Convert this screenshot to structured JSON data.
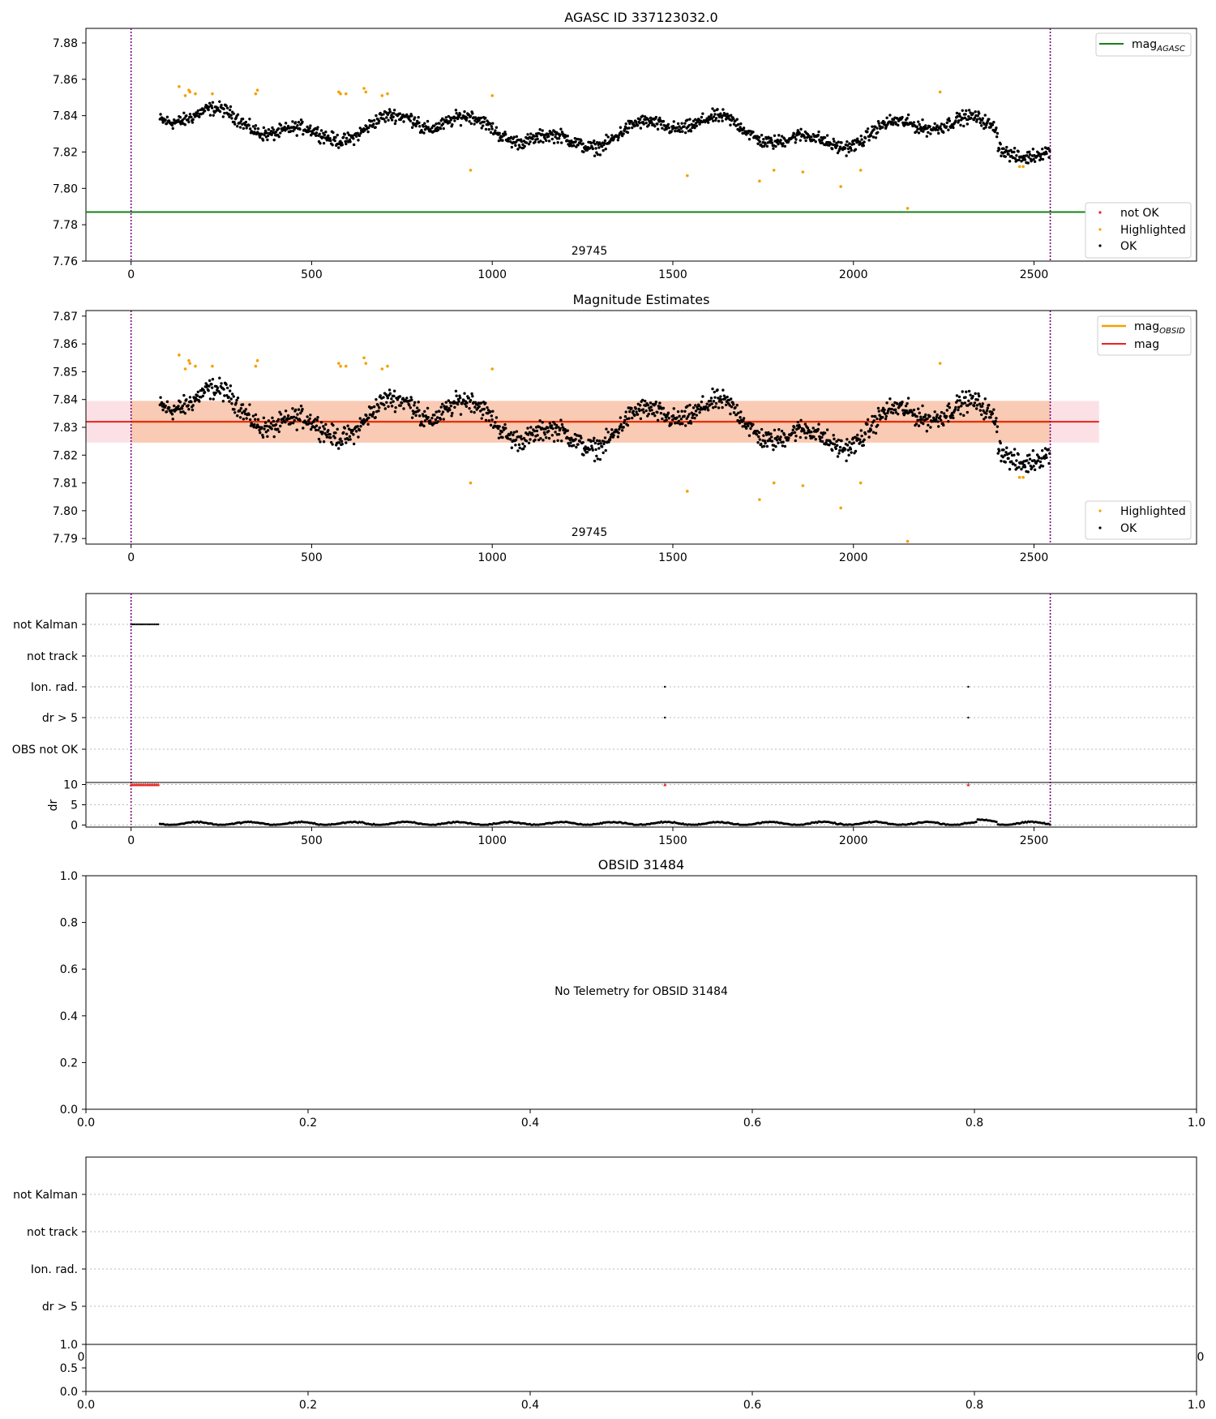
{
  "chart_data": [
    {
      "type": "scatter",
      "title": "AGASC ID 337123032.0",
      "xlim": [
        -125,
        2950
      ],
      "ylim": [
        7.76,
        7.888
      ],
      "xticks": [
        0,
        500,
        1000,
        1500,
        2000,
        2500
      ],
      "yticks": [
        7.76,
        7.78,
        7.8,
        7.82,
        7.84,
        7.86,
        7.88
      ],
      "vlines": [
        0,
        2545
      ],
      "hline": {
        "name": "mag_AGASC",
        "y": 7.787,
        "color": "#1a7f1a"
      },
      "annotation": {
        "text": "29745",
        "x": 1270,
        "y": 7.765
      },
      "legend_upper": [
        {
          "label": "mag",
          "sub": "AGASC",
          "color": "#1a7f1a"
        }
      ],
      "legend_lower": [
        {
          "label": "not OK",
          "color": "#e8231c"
        },
        {
          "label": "Highlighted",
          "color": "#f5a000"
        },
        {
          "label": "OK",
          "color": "#000000"
        }
      ],
      "highlighted_points": [
        [
          133,
          7.856
        ],
        [
          150,
          7.851
        ],
        [
          160,
          7.854
        ],
        [
          163,
          7.853
        ],
        [
          178,
          7.852
        ],
        [
          225,
          7.852
        ],
        [
          345,
          7.852
        ],
        [
          350,
          7.854
        ],
        [
          575,
          7.853
        ],
        [
          580,
          7.852
        ],
        [
          595,
          7.852
        ],
        [
          645,
          7.855
        ],
        [
          650,
          7.853
        ],
        [
          695,
          7.851
        ],
        [
          710,
          7.852
        ],
        [
          940,
          7.81
        ],
        [
          1000,
          7.851
        ],
        [
          1540,
          7.807
        ],
        [
          1740,
          7.804
        ],
        [
          1780,
          7.81
        ],
        [
          1860,
          7.809
        ],
        [
          1965,
          7.801
        ],
        [
          2020,
          7.81
        ],
        [
          2150,
          7.789
        ],
        [
          2240,
          7.853
        ],
        [
          2460,
          7.812
        ],
        [
          2470,
          7.812
        ]
      ],
      "ok_series": {
        "x_start": 80,
        "x_end": 2545,
        "level": 7.831,
        "spread": 0.011,
        "count": 1450
      }
    },
    {
      "type": "scatter",
      "title": "Magnitude Estimates",
      "xlim": [
        -125,
        2950
      ],
      "ylim": [
        7.788,
        7.872
      ],
      "xticks": [
        0,
        500,
        1000,
        1500,
        2000,
        2500
      ],
      "yticks": [
        7.79,
        7.8,
        7.81,
        7.82,
        7.83,
        7.84,
        7.85,
        7.86,
        7.87
      ],
      "vlines": [
        0,
        2545
      ],
      "annotation": {
        "text": "29745",
        "x": 1270,
        "y": 7.7915
      },
      "mag": {
        "name": "mag",
        "y": 7.832,
        "band": [
          7.8245,
          7.8395
        ],
        "x_range": [
          -125,
          2680
        ],
        "color": "#e8231c"
      },
      "mag_obsid": {
        "name": "mag_OBSID",
        "y": 7.832,
        "band": [
          7.8245,
          7.8395
        ],
        "x_range": [
          0,
          2545
        ],
        "color": "#f5a000"
      },
      "legend_upper": [
        {
          "label": "mag",
          "sub": "OBSID",
          "color": "#f5a000"
        },
        {
          "label": "mag",
          "sub": "",
          "color": "#e8231c"
        }
      ],
      "legend_lower": [
        {
          "label": "Highlighted",
          "color": "#f5a000"
        },
        {
          "label": "OK",
          "color": "#000000"
        }
      ]
    },
    {
      "type": "scatter",
      "title": "",
      "xlim": [
        -125,
        2950
      ],
      "categories": [
        "not Kalman",
        "not track",
        "Ion. rad.",
        "dr > 5",
        "OBS not OK"
      ],
      "xticks": [
        0,
        500,
        1000,
        1500,
        2000,
        2500
      ],
      "vlines": [
        0,
        2545
      ],
      "flags": {
        "not Kalman": [
          [
            0,
            75
          ]
        ],
        "Ion. rad.": [
          [
            1478,
            1478
          ],
          [
            2318,
            2318
          ]
        ],
        "dr > 5": [
          [
            1478,
            1478
          ],
          [
            2318,
            2318
          ]
        ]
      },
      "dr": {
        "ylabel": "dr",
        "ylim": [
          -0.5,
          10.5
        ],
        "yticks": [
          0,
          5,
          10
        ],
        "clipped_red": [
          [
            0,
            75
          ],
          [
            1478,
            1478
          ],
          [
            2318,
            2318
          ]
        ],
        "baseline": 0.4
      }
    },
    {
      "type": "scatter",
      "title": "OBSID 31484",
      "xlim": [
        0,
        1
      ],
      "ylim": [
        0,
        1
      ],
      "xticks": [
        "0.0",
        "0.2",
        "0.4",
        "0.6",
        "0.8",
        "1.0"
      ],
      "yticks": [
        "0.0",
        "0.2",
        "0.4",
        "0.6",
        "0.8",
        "1.0"
      ],
      "message": "No Telemetry for OBSID 31484"
    },
    {
      "type": "scatter",
      "title": "",
      "categories": [
        "not Kalman",
        "not track",
        "Ion. rad.",
        "dr > 5"
      ],
      "overlapped_ticks": [
        "0",
        "0"
      ],
      "lower_axis": {
        "xticks": [
          "0.0",
          "0.2",
          "0.4",
          "0.6",
          "0.8",
          "1.0"
        ],
        "yticks": [
          "0.0",
          "0.5",
          "1.0"
        ]
      }
    }
  ]
}
